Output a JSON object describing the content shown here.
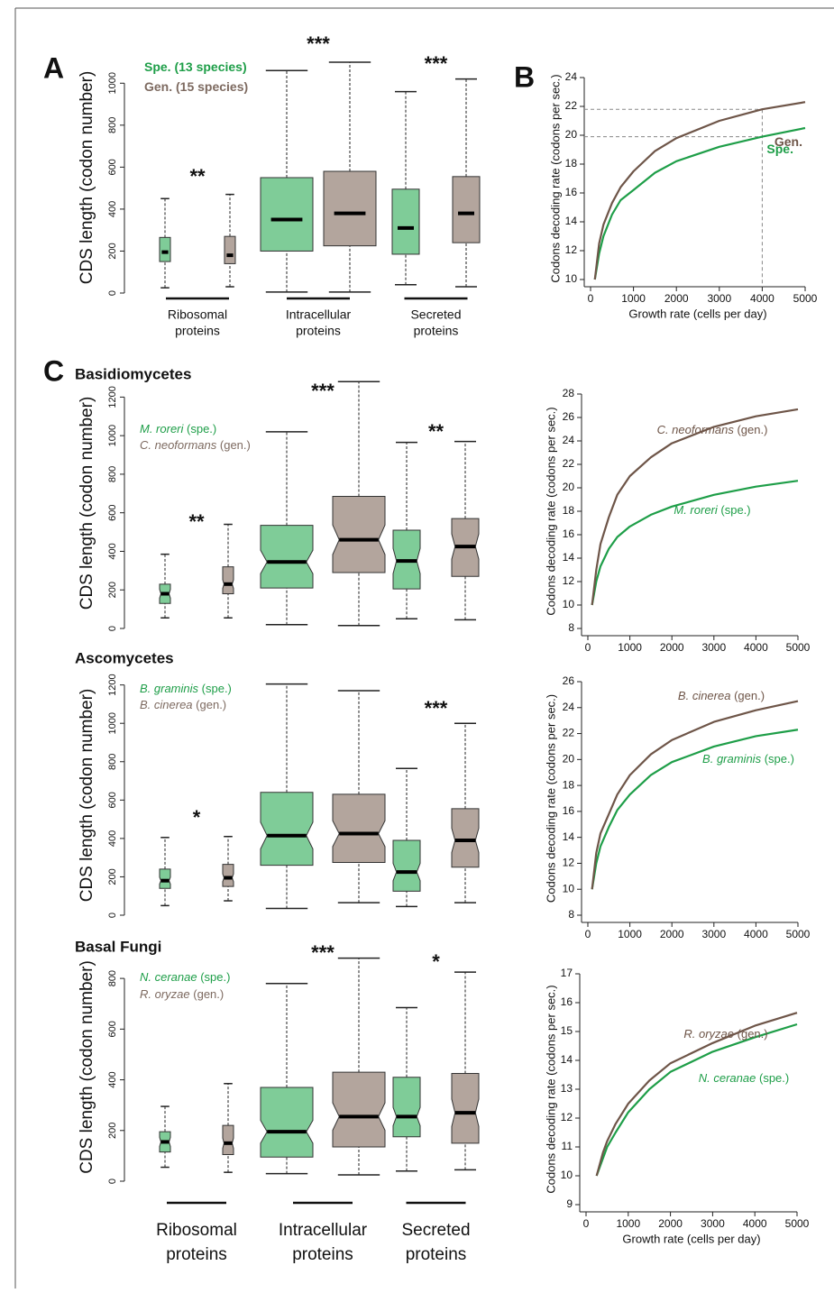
{
  "figure": {
    "panels": [
      "A",
      "B",
      "C"
    ],
    "sections": [
      "Basidiomycetes",
      "Ascomycetes",
      "Basal Fungi"
    ]
  },
  "chart_data": [
    {
      "type": "box",
      "notch": false,
      "ylabel": "CDS length (codon number)",
      "ylim": [
        0,
        1100
      ],
      "yticks": [
        0,
        200,
        400,
        600,
        800,
        1000
      ],
      "categories": [
        [
          "Ribosomal",
          "proteins"
        ],
        [
          "Intracellular",
          "proteins"
        ],
        [
          "Secreted",
          "proteins"
        ]
      ],
      "series": [
        {
          "name": "Spe. (13 species)",
          "color": "#1e9e48",
          "fill": "#7fcc98",
          "boxes": [
            [
              25,
              150,
              195,
              265,
              450
            ],
            [
              5,
              200,
              350,
              550,
              1060
            ],
            [
              40,
              185,
              310,
              495,
              960
            ]
          ]
        },
        {
          "name": "Gen. (15 species)",
          "color": "#7d6a60",
          "fill": "#b3a59d",
          "boxes": [
            [
              30,
              140,
              180,
              270,
              470
            ],
            [
              5,
              225,
              380,
              580,
              1100
            ],
            [
              30,
              240,
              380,
              555,
              1020
            ]
          ]
        }
      ],
      "annotations": [
        "**",
        "***",
        "***"
      ]
    },
    {
      "type": "line",
      "xlabel": "Growth rate (cells per day)",
      "ylabel": "Codons decoding rate (codons per sec.)",
      "x": [
        100,
        200,
        300,
        500,
        700,
        1000,
        1500,
        2000,
        3000,
        4000,
        5000
      ],
      "xlim": [
        0,
        5000
      ],
      "xticks": [
        0,
        1000,
        2000,
        3000,
        4000,
        5000
      ],
      "ylim": [
        10,
        24
      ],
      "yticks": [
        10,
        12,
        14,
        16,
        18,
        20,
        22,
        24
      ],
      "series": [
        {
          "name": "Spe.",
          "color": "#1e9e48",
          "values": [
            10,
            11.8,
            13,
            14.5,
            15.5,
            16.2,
            17.4,
            18.2,
            19.2,
            19.9,
            20.5
          ]
        },
        {
          "name": "Gen.",
          "color": "#6e5548",
          "values": [
            10,
            12.5,
            13.8,
            15.3,
            16.4,
            17.5,
            18.9,
            19.8,
            21,
            21.8,
            22.3
          ]
        }
      ],
      "reference": {
        "x": 4000,
        "y": [
          21.8,
          19.9
        ]
      }
    },
    {
      "type": "box",
      "notch": true,
      "ylabel": "CDS length (codon number)",
      "ylim": [
        0,
        1300
      ],
      "yticks": [
        0,
        200,
        400,
        600,
        800,
        1000,
        1200
      ],
      "series": [
        {
          "name": "M. roreri",
          "tag": "(spe.)",
          "color": "#1e9e48",
          "fill": "#7fcc98",
          "boxes": [
            [
              55,
              130,
              180,
              230,
              385
            ],
            [
              20,
              210,
              345,
              535,
              1020
            ],
            [
              50,
              205,
              350,
              510,
              965
            ]
          ]
        },
        {
          "name": "C. neoformans",
          "tag": "(gen.)",
          "color": "#7d6a60",
          "fill": "#b3a59d",
          "boxes": [
            [
              55,
              180,
              230,
              320,
              540
            ],
            [
              15,
              290,
              460,
              685,
              1280
            ],
            [
              45,
              270,
              425,
              570,
              970
            ]
          ]
        }
      ],
      "annotations": [
        "**",
        "***",
        "**"
      ]
    },
    {
      "type": "line",
      "ylabel": "Codons decoding rate (codons per sec.)",
      "x": [
        100,
        200,
        300,
        500,
        700,
        1000,
        1500,
        2000,
        3000,
        4000,
        5000
      ],
      "xlim": [
        0,
        5000
      ],
      "xticks": [
        0,
        1000,
        2000,
        3000,
        4000,
        5000
      ],
      "ylim": [
        8,
        28
      ],
      "yticks": [
        8,
        10,
        12,
        14,
        16,
        18,
        20,
        22,
        24,
        26,
        28
      ],
      "series": [
        {
          "name": "M. roreri",
          "tag": "(spe.)",
          "color": "#1e9e48",
          "values": [
            10,
            12,
            13.3,
            14.8,
            15.8,
            16.7,
            17.7,
            18.4,
            19.4,
            20.1,
            20.6
          ]
        },
        {
          "name": "C. neoformans",
          "tag": "(gen.)",
          "color": "#6e5548",
          "values": [
            10,
            13,
            15.2,
            17.5,
            19.4,
            21,
            22.6,
            23.8,
            25.2,
            26.1,
            26.7
          ]
        }
      ]
    },
    {
      "type": "box",
      "notch": true,
      "ylabel": "CDS length (codon number)",
      "ylim": [
        0,
        1250
      ],
      "yticks": [
        0,
        200,
        400,
        600,
        800,
        1000,
        1200
      ],
      "series": [
        {
          "name": "B. graminis",
          "tag": "(spe.)",
          "color": "#1e9e48",
          "fill": "#7fcc98",
          "boxes": [
            [
              50,
              140,
              180,
              240,
              405
            ],
            [
              35,
              260,
              415,
              640,
              1205
            ],
            [
              45,
              125,
              225,
              390,
              765
            ]
          ]
        },
        {
          "name": "B. cinerea",
          "tag": "(gen.)",
          "color": "#7d6a60",
          "fill": "#b3a59d",
          "boxes": [
            [
              75,
              150,
              195,
              265,
              410
            ],
            [
              65,
              275,
              425,
              630,
              1170
            ],
            [
              65,
              250,
              390,
              555,
              1000
            ]
          ]
        }
      ],
      "annotations": [
        "*",
        null,
        "***"
      ]
    },
    {
      "type": "line",
      "ylabel": "Codons decoding rate (codons per sec.)",
      "x": [
        100,
        200,
        300,
        500,
        700,
        1000,
        1500,
        2000,
        3000,
        4000,
        5000
      ],
      "xlim": [
        0,
        5000
      ],
      "xticks": [
        0,
        1000,
        2000,
        3000,
        4000,
        5000
      ],
      "ylim": [
        8,
        26
      ],
      "yticks": [
        8,
        10,
        12,
        14,
        16,
        18,
        20,
        22,
        24,
        26
      ],
      "series": [
        {
          "name": "B. graminis",
          "tag": "(spe.)",
          "color": "#1e9e48",
          "values": [
            10,
            12,
            13.3,
            14.8,
            16.1,
            17.3,
            18.8,
            19.8,
            21,
            21.8,
            22.3
          ]
        },
        {
          "name": "B. cinerea",
          "tag": "(gen.)",
          "color": "#6e5548",
          "values": [
            10,
            12.8,
            14.3,
            15.8,
            17.3,
            18.8,
            20.4,
            21.5,
            22.9,
            23.8,
            24.5
          ]
        }
      ]
    },
    {
      "type": "box",
      "notch": true,
      "ylabel": "CDS length (codon number)",
      "ylim": [
        0,
        900
      ],
      "yticks": [
        0,
        200,
        400,
        600,
        800
      ],
      "categories": [
        [
          "Ribosomal",
          "proteins"
        ],
        [
          "Intracellular",
          "proteins"
        ],
        [
          "Secreted",
          "proteins"
        ]
      ],
      "series": [
        {
          "name": "N. ceranae",
          "tag": "(spe.)",
          "color": "#1e9e48",
          "fill": "#7fcc98",
          "boxes": [
            [
              55,
              115,
              155,
              195,
              295
            ],
            [
              30,
              95,
              195,
              370,
              780
            ],
            [
              40,
              175,
              255,
              410,
              685
            ]
          ]
        },
        {
          "name": "R. oryzae",
          "tag": "(gen.)",
          "color": "#7d6a60",
          "fill": "#b3a59d",
          "boxes": [
            [
              35,
              105,
              150,
              220,
              385
            ],
            [
              25,
              135,
              255,
              430,
              880
            ],
            [
              45,
              150,
              270,
              425,
              825
            ]
          ]
        }
      ],
      "annotations": [
        null,
        "***",
        "*"
      ]
    },
    {
      "type": "line",
      "xlabel": "Growth rate (cells per day)",
      "ylabel": "Codons decoding rate (codons per sec.)",
      "x": [
        250,
        400,
        500,
        700,
        1000,
        1500,
        2000,
        3000,
        4000,
        5000
      ],
      "xlim": [
        0,
        5000
      ],
      "xticks": [
        0,
        1000,
        2000,
        3000,
        4000,
        5000
      ],
      "ylim": [
        9,
        17
      ],
      "yticks": [
        9,
        10,
        11,
        12,
        13,
        14,
        15,
        16,
        17
      ],
      "series": [
        {
          "name": "N. ceranae",
          "tag": "(spe.)",
          "color": "#1e9e48",
          "values": [
            10,
            10.6,
            11,
            11.5,
            12.2,
            13,
            13.6,
            14.3,
            14.8,
            15.25
          ]
        },
        {
          "name": "R. oryzae",
          "tag": "(gen.)",
          "color": "#6e5548",
          "values": [
            10,
            10.8,
            11.2,
            11.8,
            12.5,
            13.3,
            13.9,
            14.6,
            15.2,
            15.65
          ]
        }
      ]
    }
  ]
}
